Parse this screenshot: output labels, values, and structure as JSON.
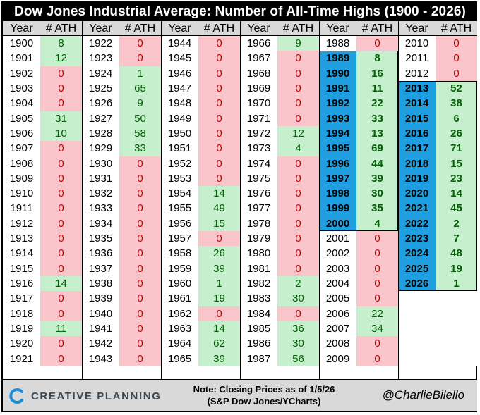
{
  "title": "Dow Jones Industrial Average: Number of All-Time Highs (1900 - 2026)",
  "headers": {
    "year": "Year",
    "ath": "# ATH"
  },
  "colors": {
    "zero_bg": "#f9c5ca",
    "zero_text": "#c00000",
    "pos_bg": "#c6efce",
    "pos_text": "#006100",
    "highlight_year_bg": "#1f9fdf",
    "header_bg": "#d9d9d9",
    "title_bg": "#000000"
  },
  "chart_data": {
    "type": "table",
    "title": "Dow Jones Industrial Average: Number of All-Time Highs (1900 - 2026)",
    "columns": [
      "Year",
      "# ATH"
    ],
    "groups": [
      {
        "rows": [
          [
            "1900",
            8
          ],
          [
            "1901",
            12
          ],
          [
            "1902",
            0
          ],
          [
            "1903",
            0
          ],
          [
            "1904",
            0
          ],
          [
            "1905",
            31
          ],
          [
            "1906",
            10
          ],
          [
            "1907",
            0
          ],
          [
            "1908",
            0
          ],
          [
            "1909",
            0
          ],
          [
            "1910",
            0
          ],
          [
            "1911",
            0
          ],
          [
            "1912",
            0
          ],
          [
            "1913",
            0
          ],
          [
            "1914",
            0
          ],
          [
            "1915",
            0
          ],
          [
            "1916",
            14
          ],
          [
            "1917",
            0
          ],
          [
            "1918",
            0
          ],
          [
            "1919",
            11
          ],
          [
            "1920",
            0
          ],
          [
            "1921",
            0
          ]
        ]
      },
      {
        "rows": [
          [
            "1922",
            0
          ],
          [
            "1923",
            0
          ],
          [
            "1924",
            1
          ],
          [
            "1925",
            65
          ],
          [
            "1926",
            9
          ],
          [
            "1927",
            50
          ],
          [
            "1928",
            58
          ],
          [
            "1929",
            33
          ],
          [
            "1930",
            0
          ],
          [
            "1931",
            0
          ],
          [
            "1932",
            0
          ],
          [
            "1933",
            0
          ],
          [
            "1934",
            0
          ],
          [
            "1935",
            0
          ],
          [
            "1936",
            0
          ],
          [
            "1937",
            0
          ],
          [
            "1938",
            0
          ],
          [
            "1939",
            0
          ],
          [
            "1940",
            0
          ],
          [
            "1941",
            0
          ],
          [
            "1942",
            0
          ],
          [
            "1943",
            0
          ]
        ]
      },
      {
        "rows": [
          [
            "1944",
            0
          ],
          [
            "1945",
            0
          ],
          [
            "1946",
            0
          ],
          [
            "1947",
            0
          ],
          [
            "1948",
            0
          ],
          [
            "1949",
            0
          ],
          [
            "1950",
            0
          ],
          [
            "1951",
            0
          ],
          [
            "1952",
            0
          ],
          [
            "1953",
            0
          ],
          [
            "1954",
            14
          ],
          [
            "1955",
            49
          ],
          [
            "1956",
            15
          ],
          [
            "1957",
            0
          ],
          [
            "1958",
            26
          ],
          [
            "1959",
            39
          ],
          [
            "1960",
            1
          ],
          [
            "1961",
            19
          ],
          [
            "1962",
            0
          ],
          [
            "1963",
            14
          ],
          [
            "1964",
            62
          ],
          [
            "1965",
            39
          ]
        ]
      },
      {
        "rows": [
          [
            "1966",
            9
          ],
          [
            "1967",
            0
          ],
          [
            "1968",
            0
          ],
          [
            "1969",
            0
          ],
          [
            "1970",
            0
          ],
          [
            "1971",
            0
          ],
          [
            "1972",
            12
          ],
          [
            "1973",
            4
          ],
          [
            "1974",
            0
          ],
          [
            "1975",
            0
          ],
          [
            "1976",
            0
          ],
          [
            "1977",
            0
          ],
          [
            "1978",
            0
          ],
          [
            "1979",
            0
          ],
          [
            "1980",
            0
          ],
          [
            "1981",
            0
          ],
          [
            "1982",
            2
          ],
          [
            "1983",
            30
          ],
          [
            "1984",
            0
          ],
          [
            "1985",
            36
          ],
          [
            "1986",
            30
          ],
          [
            "1987",
            56
          ]
        ]
      },
      {
        "rows": [
          [
            "1988",
            0
          ],
          [
            "1989",
            8
          ],
          [
            "1990",
            16
          ],
          [
            "1991",
            11
          ],
          [
            "1992",
            22
          ],
          [
            "1993",
            33
          ],
          [
            "1994",
            13
          ],
          [
            "1995",
            69
          ],
          [
            "1996",
            44
          ],
          [
            "1997",
            39
          ],
          [
            "1998",
            30
          ],
          [
            "1999",
            35
          ],
          [
            "2000",
            4
          ],
          [
            "2001",
            0
          ],
          [
            "2002",
            0
          ],
          [
            "2003",
            0
          ],
          [
            "2004",
            0
          ],
          [
            "2005",
            0
          ],
          [
            "2006",
            22
          ],
          [
            "2007",
            34
          ],
          [
            "2008",
            0
          ],
          [
            "2009",
            0
          ]
        ],
        "highlight_years": [
          "1989",
          "1990",
          "1991",
          "1992",
          "1993",
          "1994",
          "1995",
          "1996",
          "1997",
          "1998",
          "1999",
          "2000"
        ]
      },
      {
        "rows": [
          [
            "2010",
            0
          ],
          [
            "2011",
            0
          ],
          [
            "2012",
            0
          ],
          [
            "2013",
            52
          ],
          [
            "2014",
            38
          ],
          [
            "2015",
            6
          ],
          [
            "2016",
            26
          ],
          [
            "2017",
            71
          ],
          [
            "2018",
            15
          ],
          [
            "2019",
            23
          ],
          [
            "2020",
            14
          ],
          [
            "2021",
            45
          ],
          [
            "2022",
            2
          ],
          [
            "2023",
            7
          ],
          [
            "2024",
            48
          ],
          [
            "2025",
            19
          ],
          [
            "2026",
            1
          ]
        ],
        "highlight_years": [
          "2013",
          "2014",
          "2015",
          "2016",
          "2017",
          "2018",
          "2019",
          "2020",
          "2021",
          "2022",
          "2023",
          "2024",
          "2025",
          "2026"
        ]
      }
    ]
  },
  "footer": {
    "logo_text": "CREATIVE PLANNING",
    "logo_icon": "creative-planning-c-logo",
    "note_line1": "Note: Closing Prices as of 1/5/26",
    "note_line2": "(S&P Dow Jones/YCharts)",
    "handle": "@CharlieBilello"
  }
}
